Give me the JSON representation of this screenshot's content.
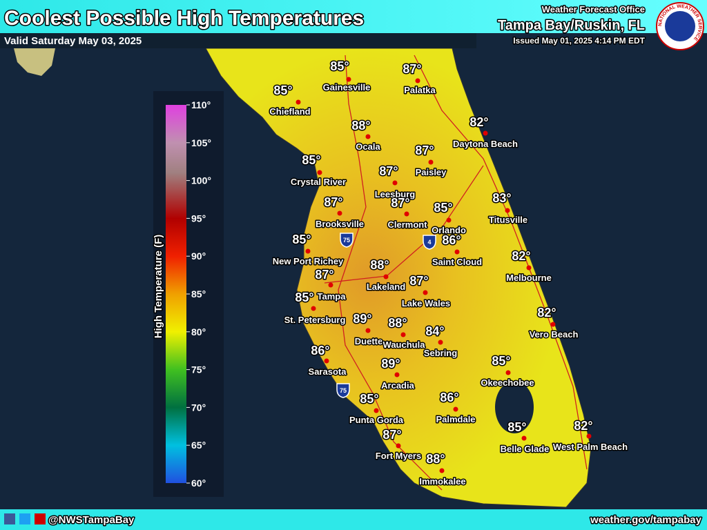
{
  "header": {
    "title": "Coolest Possible High Temperatures",
    "valid": "Valid Saturday May 03, 2025",
    "office_line": "Weather Forecast Office",
    "office": "Tampa Bay/Ruskin, FL",
    "issued": "Issued May 01, 2025 4:14 PM EDT",
    "logo_text": "NATIONAL WEATHER SERVICE"
  },
  "legend": {
    "title": "High Temperature (F)",
    "ticks": [
      "110°",
      "105°",
      "100°",
      "95°",
      "90°",
      "85°",
      "80°",
      "75°",
      "70°",
      "65°",
      "60°"
    ]
  },
  "highways": [
    "75",
    "4",
    "75"
  ],
  "cities": [
    {
      "name": "Gainesville",
      "temp": "85°"
    },
    {
      "name": "Palatka",
      "temp": "87°"
    },
    {
      "name": "Chiefland",
      "temp": "85°"
    },
    {
      "name": "Ocala",
      "temp": "88°"
    },
    {
      "name": "Daytona Beach",
      "temp": "82°"
    },
    {
      "name": "Paisley",
      "temp": "87°"
    },
    {
      "name": "Crystal River",
      "temp": "85°"
    },
    {
      "name": "Leesburg",
      "temp": "87°"
    },
    {
      "name": "Clermont",
      "temp": "87°"
    },
    {
      "name": "Brooksville",
      "temp": "87°"
    },
    {
      "name": "Orlando",
      "temp": "85°"
    },
    {
      "name": "Titusville",
      "temp": "83°"
    },
    {
      "name": "New Port Richey",
      "temp": "85°"
    },
    {
      "name": "Saint Cloud",
      "temp": "86°"
    },
    {
      "name": "Lakeland",
      "temp": "88°"
    },
    {
      "name": "Melbourne",
      "temp": "82°"
    },
    {
      "name": "Tampa",
      "temp": "87°"
    },
    {
      "name": "Lake Wales",
      "temp": "87°"
    },
    {
      "name": "St. Petersburg",
      "temp": "85°"
    },
    {
      "name": "Vero Beach",
      "temp": "82°"
    },
    {
      "name": "Duette",
      "temp": "89°"
    },
    {
      "name": "Wauchula",
      "temp": "88°"
    },
    {
      "name": "Sebring",
      "temp": "84°"
    },
    {
      "name": "Sarasota",
      "temp": "86°"
    },
    {
      "name": "Okeechobee",
      "temp": "85°"
    },
    {
      "name": "Arcadia",
      "temp": "89°"
    },
    {
      "name": "Punta Gorda",
      "temp": "85°"
    },
    {
      "name": "Palmdale",
      "temp": "86°"
    },
    {
      "name": "Belle Glade",
      "temp": "85°"
    },
    {
      "name": "West Palm Beach",
      "temp": "82°"
    },
    {
      "name": "Fort Myers",
      "temp": "87°"
    },
    {
      "name": "Immokalee",
      "temp": "88°"
    }
  ],
  "footer": {
    "social": "@NWSTampaBay",
    "url": "weather.gov/tampabay"
  }
}
